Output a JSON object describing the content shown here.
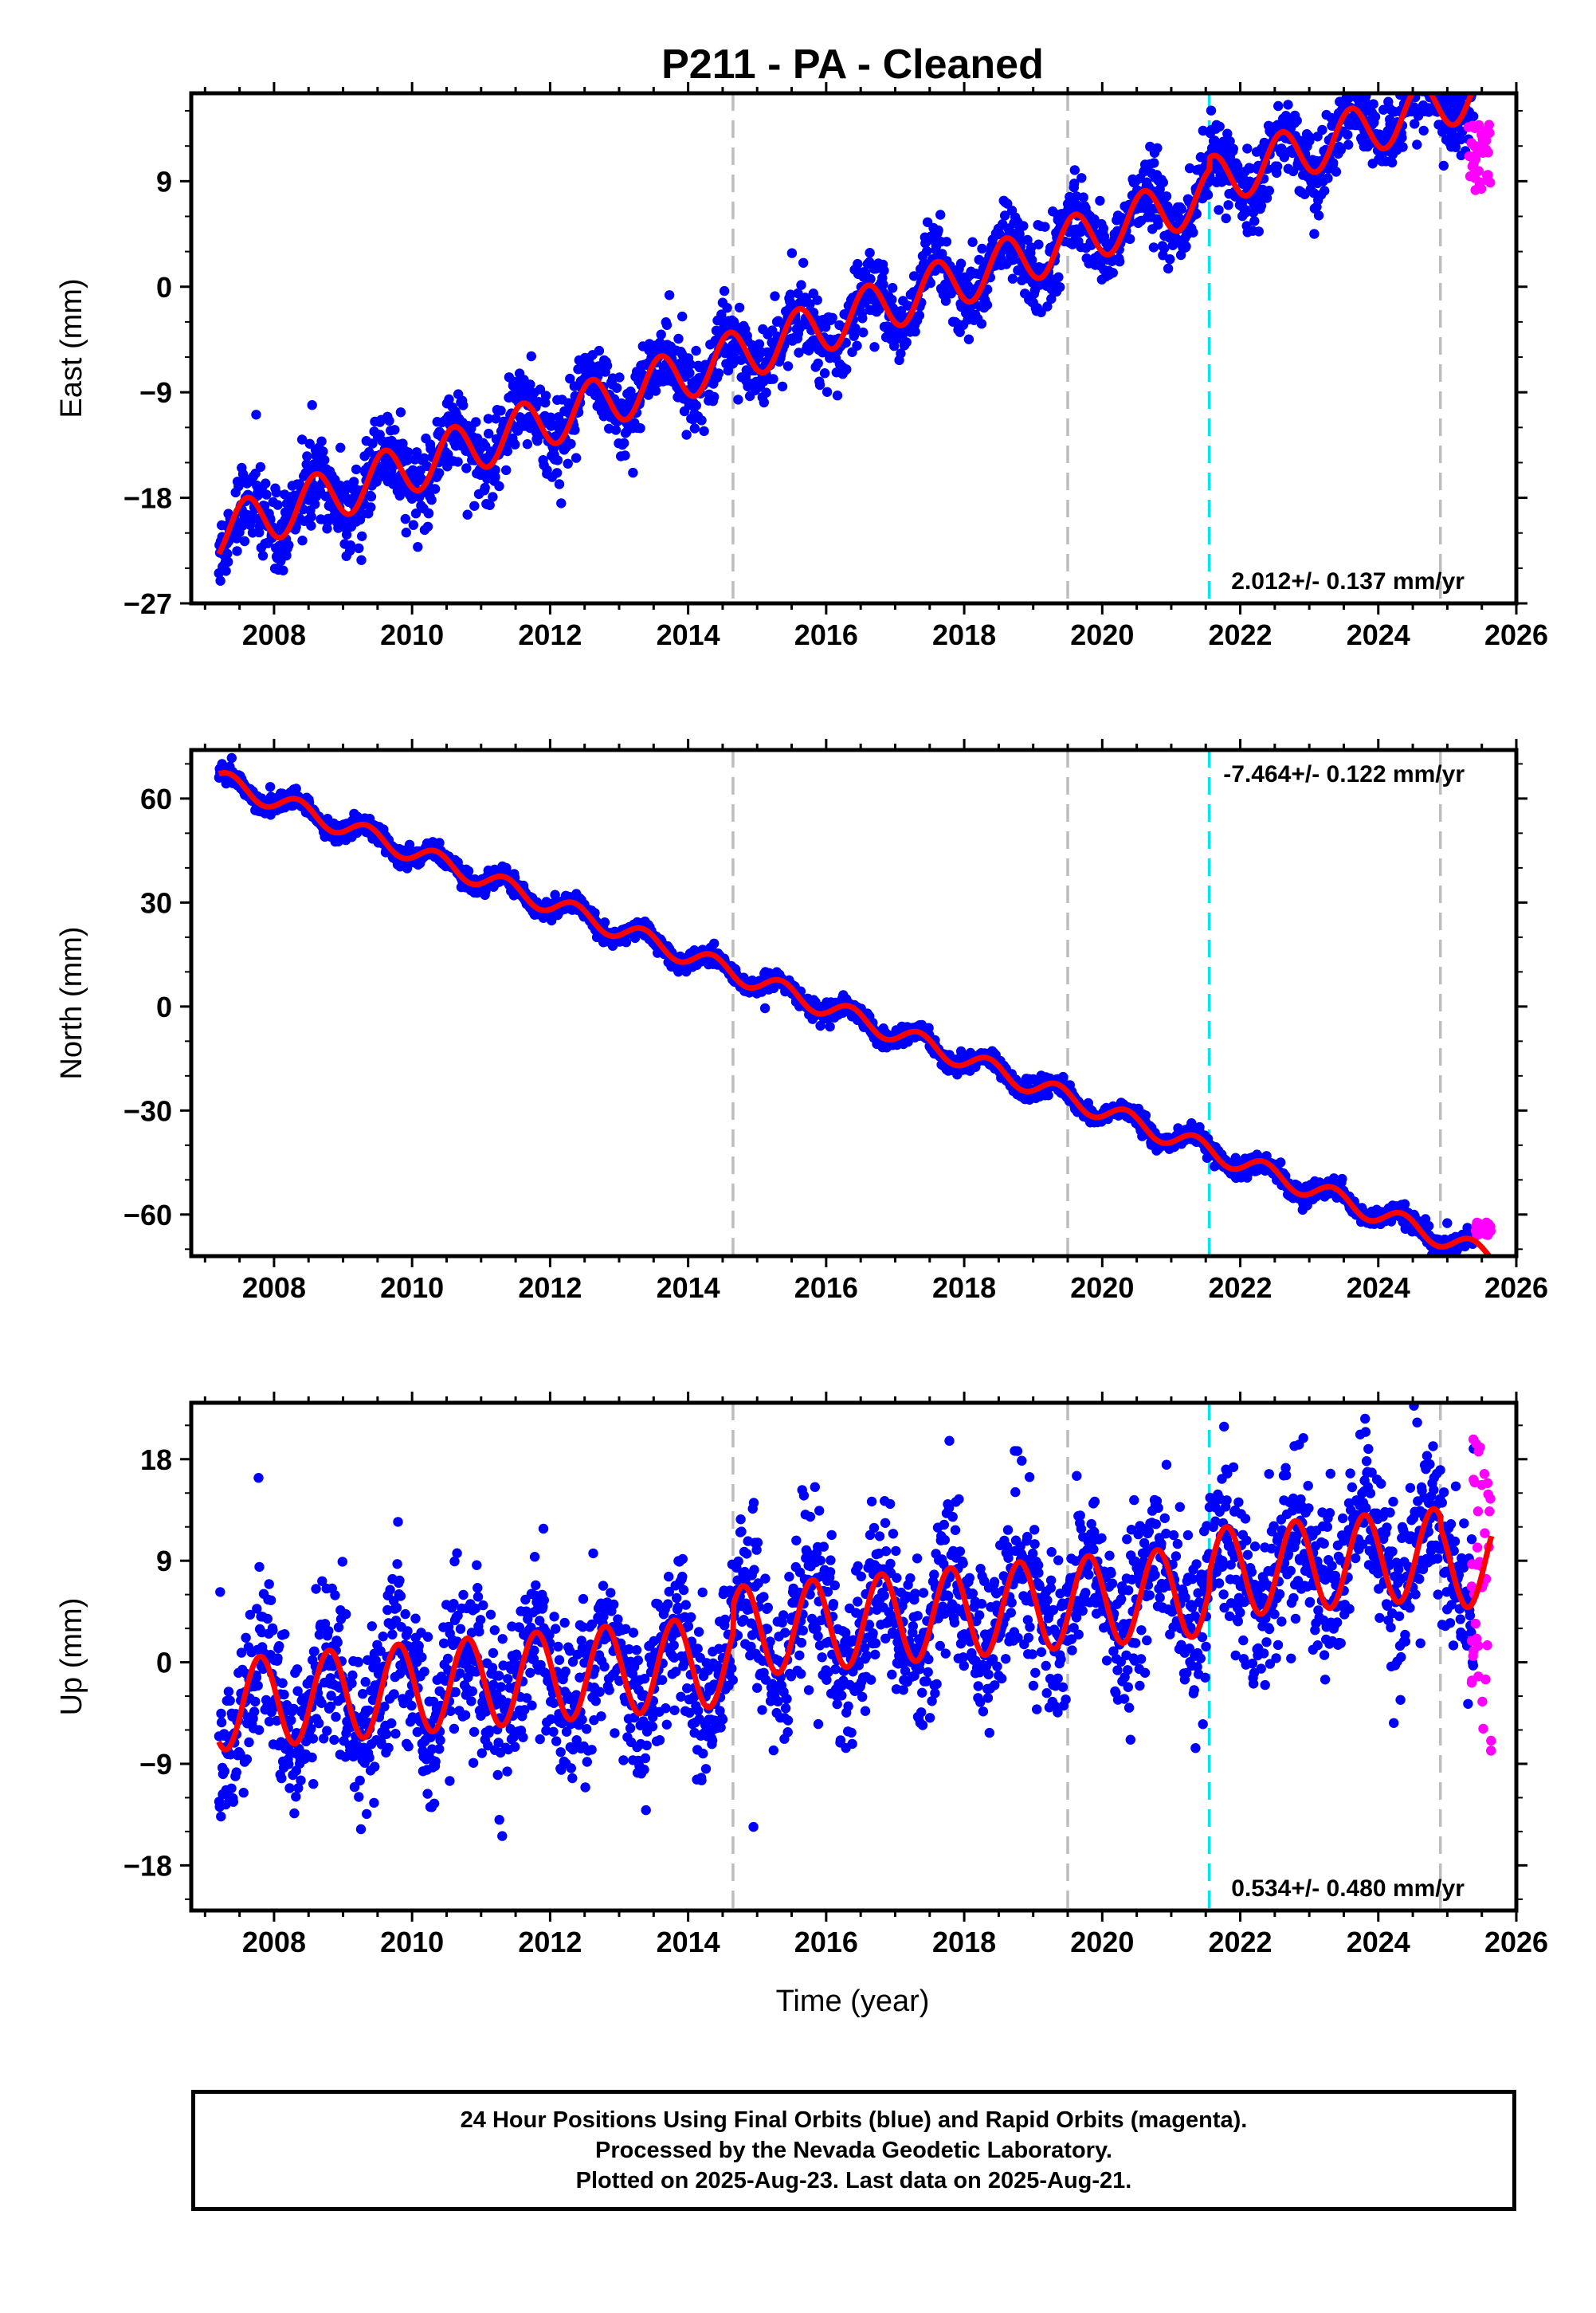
{
  "page": {
    "title": "P211  - PA - Cleaned",
    "xlabel": "Time (year)",
    "footer_lines": [
      "24 Hour Positions Using Final Orbits (blue) and Rapid Orbits (magenta).",
      "Processed by the Nevada Geodetic Laboratory.",
      "Plotted on 2025-Aug-23. Last data on 2025-Aug-21."
    ]
  },
  "colors": {
    "final_orbits": "#0000ff",
    "rapid_orbits": "#ff00ff",
    "model_fit": "#ff0000",
    "equipment_change": "#bdbdbd",
    "event_line": "#00e5ee"
  },
  "chart_data": [
    {
      "type": "scatter",
      "ylabel": "East (mm)",
      "xlim": [
        2006.8,
        2026.0
      ],
      "ylim": [
        -27,
        16.5
      ],
      "x_ticks": [
        2008,
        2010,
        2012,
        2014,
        2016,
        2018,
        2020,
        2022,
        2024,
        2026
      ],
      "y_ticks": [
        -27,
        -18,
        -9,
        0,
        9
      ],
      "rate_text": "2.012+/- 0.137 mm/yr",
      "rate_position": "bottom-right",
      "grid": false,
      "vertical_lines": [
        {
          "x": 2014.65,
          "color": "gray"
        },
        {
          "x": 2019.5,
          "color": "gray"
        },
        {
          "x": 2021.55,
          "color": "cyan"
        },
        {
          "x": 2024.9,
          "color": "gray"
        }
      ],
      "model": {
        "start": 2007.2,
        "end": 2025.64,
        "y0": -21.0,
        "trend": 2.012,
        "annual_amplitude": 2.2,
        "annual_phase": 0.35,
        "scatter": 1.6,
        "offsets": [
          {
            "x": 2021.55,
            "dy": 1.0
          }
        ]
      },
      "series": [
        {
          "name": "Final Orbits",
          "color": "blue",
          "sample_points": [
            [
              2007.3,
              -20.8
            ],
            [
              2008.0,
              -15.9
            ],
            [
              2009.0,
              -14.6
            ],
            [
              2010.0,
              -12.5
            ],
            [
              2011.0,
              -11.2
            ],
            [
              2012.0,
              -8.7
            ],
            [
              2013.0,
              -7.0
            ],
            [
              2014.0,
              -5.0
            ],
            [
              2015.0,
              -2.1
            ],
            [
              2016.0,
              -0.2
            ],
            [
              2017.0,
              2.5
            ],
            [
              2018.0,
              4.4
            ],
            [
              2019.0,
              5.6
            ],
            [
              2020.0,
              7.3
            ],
            [
              2021.0,
              9.1
            ],
            [
              2022.0,
              7.1
            ],
            [
              2023.0,
              10.0
            ],
            [
              2024.0,
              11.4
            ],
            [
              2025.0,
              13.8
            ],
            [
              2025.6,
              11.6
            ]
          ]
        },
        {
          "name": "Rapid Orbits",
          "color": "magenta",
          "x_range": [
            2025.3,
            2025.64
          ],
          "y_range": [
            8.0,
            14.0
          ]
        }
      ]
    },
    {
      "type": "scatter",
      "ylabel": "North (mm)",
      "xlim": [
        2006.8,
        2026.0
      ],
      "ylim": [
        -72,
        74
      ],
      "x_ticks": [
        2008,
        2010,
        2012,
        2014,
        2016,
        2018,
        2020,
        2022,
        2024,
        2026
      ],
      "y_ticks": [
        -60,
        -30,
        0,
        30,
        60
      ],
      "rate_text": "-7.464+/- 0.122 mm/yr",
      "rate_position": "top-right",
      "grid": false,
      "vertical_lines": [
        {
          "x": 2014.65,
          "color": "gray"
        },
        {
          "x": 2019.5,
          "color": "gray"
        },
        {
          "x": 2021.55,
          "color": "cyan"
        },
        {
          "x": 2024.9,
          "color": "gray"
        }
      ],
      "model": {
        "start": 2007.2,
        "end": 2025.64,
        "y0": 65.5,
        "trend": -7.464,
        "annual_amplitude": 2.8,
        "annual_phase": 0.1,
        "scatter": 1.3,
        "offsets": []
      },
      "series": [
        {
          "name": "Final Orbits",
          "color": "blue",
          "sample_points": [
            [
              2007.3,
              65
            ],
            [
              2008.0,
              62
            ],
            [
              2009.0,
              54
            ],
            [
              2010.0,
              47
            ],
            [
              2011.0,
              39
            ],
            [
              2012.0,
              32
            ],
            [
              2013.0,
              24
            ],
            [
              2014.0,
              16
            ],
            [
              2015.0,
              9
            ],
            [
              2016.0,
              2
            ],
            [
              2017.0,
              -6
            ],
            [
              2018.0,
              -14
            ],
            [
              2019.0,
              -21
            ],
            [
              2020.0,
              -29
            ],
            [
              2021.0,
              -37
            ],
            [
              2022.0,
              -44
            ],
            [
              2023.0,
              -51
            ],
            [
              2024.0,
              -58
            ],
            [
              2025.0,
              -65
            ],
            [
              2025.6,
              -64
            ]
          ]
        },
        {
          "name": "Rapid Orbits",
          "color": "magenta",
          "x_range": [
            2025.4,
            2025.64
          ],
          "y_range": [
            -66,
            -62
          ]
        }
      ]
    },
    {
      "type": "scatter",
      "ylabel": "Up (mm)",
      "xlim": [
        2006.8,
        2026.0
      ],
      "ylim": [
        -22,
        23
      ],
      "x_ticks": [
        2008,
        2010,
        2012,
        2014,
        2016,
        2018,
        2020,
        2022,
        2024,
        2026
      ],
      "y_ticks": [
        -18,
        -9,
        0,
        9,
        18
      ],
      "rate_text": "0.534+/- 0.480 mm/yr",
      "rate_position": "bottom-right",
      "grid": false,
      "vertical_lines": [
        {
          "x": 2014.65,
          "color": "gray"
        },
        {
          "x": 2019.5,
          "color": "gray"
        },
        {
          "x": 2021.55,
          "color": "cyan"
        },
        {
          "x": 2024.9,
          "color": "gray"
        }
      ],
      "model": {
        "start": 2007.2,
        "end": 2025.64,
        "y0": -3.8,
        "trend": 0.534,
        "annual_amplitude": 4.0,
        "annual_phase": 0.55,
        "scatter": 3.6,
        "offsets": [
          {
            "x": 2014.65,
            "dy": 2.5
          },
          {
            "x": 2021.55,
            "dy": 1.5
          },
          {
            "x": 2024.9,
            "dy": -1.0
          }
        ]
      },
      "series": [
        {
          "name": "Final Orbits",
          "color": "blue",
          "sample_points": [
            [
              2007.3,
              -8.5
            ],
            [
              2007.8,
              -0.5
            ],
            [
              2008.3,
              -7.3
            ],
            [
              2008.8,
              0.5
            ],
            [
              2009.3,
              -6.5
            ],
            [
              2009.8,
              1.0
            ],
            [
              2010.3,
              -6.0
            ],
            [
              2010.8,
              1.5
            ],
            [
              2011.3,
              -5.5
            ],
            [
              2012.8,
              2.5
            ],
            [
              2014.8,
              4.9
            ],
            [
              2016.2,
              -2.0
            ],
            [
              2017.3,
              -1.0
            ],
            [
              2018.9,
              6.5
            ],
            [
              2020.8,
              7.5
            ],
            [
              2022.2,
              -4.5
            ],
            [
              2023.2,
              -4.0
            ],
            [
              2024.7,
              4.5
            ],
            [
              2025.3,
              -5.5
            ]
          ]
        },
        {
          "name": "Rapid Orbits",
          "color": "magenta",
          "x_range": [
            2025.35,
            2025.64
          ],
          "y_range": [
            -8.0,
            21.0
          ]
        }
      ]
    }
  ]
}
